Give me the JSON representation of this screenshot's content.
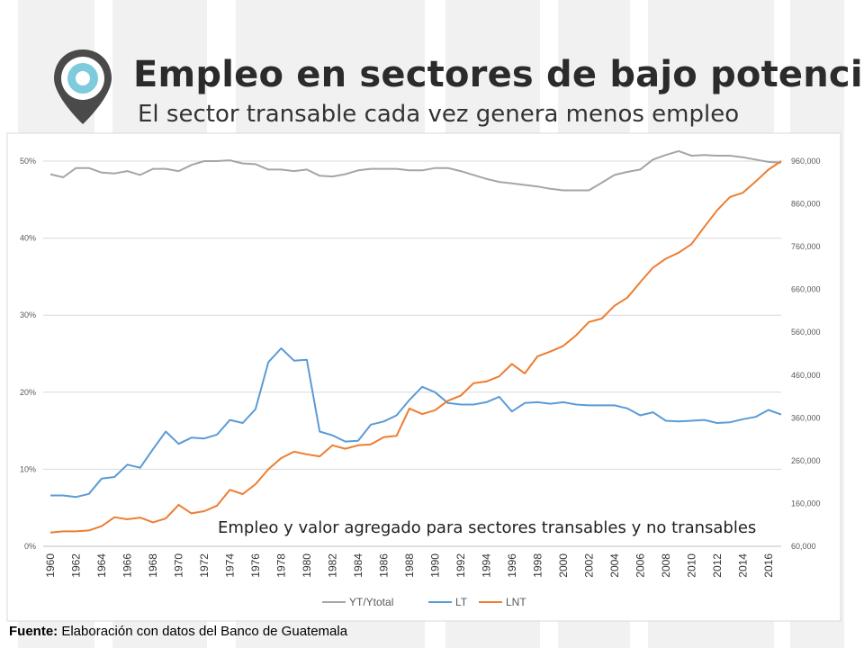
{
  "header": {
    "title": "Empleo en sectores de bajo potencial",
    "subtitle": "El sector transable cada vez genera menos empleo",
    "icon": "location-pin-icon"
  },
  "footer": {
    "label": "Fuente:",
    "text": "Elaboración con datos del Banco de Guatemala"
  },
  "colors": {
    "yt": "#a5a5a5",
    "lt": "#5b9bd5",
    "lnt": "#ed7d31",
    "pin_outer": "#4a4a4a",
    "pin_inner": "#7ecbdc"
  },
  "chart_data": {
    "type": "line",
    "annotation": "Empleo y valor agregado para sectores transables y no transables",
    "x": [
      1960,
      1961,
      1962,
      1963,
      1964,
      1965,
      1966,
      1967,
      1968,
      1969,
      1970,
      1971,
      1972,
      1973,
      1974,
      1975,
      1976,
      1977,
      1978,
      1979,
      1980,
      1981,
      1982,
      1983,
      1984,
      1985,
      1986,
      1987,
      1988,
      1989,
      1990,
      1991,
      1992,
      1993,
      1994,
      1995,
      1996,
      1997,
      1998,
      1999,
      2000,
      2001,
      2002,
      2003,
      2004,
      2005,
      2006,
      2007,
      2008,
      2009,
      2010,
      2011,
      2012,
      2013,
      2014,
      2015,
      2016,
      2017
    ],
    "x_tick_labels": [
      "1960",
      "1962",
      "1964",
      "1966",
      "1968",
      "1970",
      "1972",
      "1974",
      "1976",
      "1978",
      "1980",
      "1982",
      "1984",
      "1986",
      "1988",
      "1990",
      "1992",
      "1994",
      "1996",
      "1998",
      "2000",
      "2002",
      "2004",
      "2006",
      "2008",
      "2010",
      "2012",
      "2014",
      "2016"
    ],
    "y_left": {
      "ylim": [
        0,
        0.5
      ],
      "ticks": [
        0,
        0.1,
        0.2,
        0.3,
        0.4,
        0.5
      ],
      "tick_labels": [
        "0%",
        "10%",
        "20%",
        "30%",
        "40%",
        "50%"
      ]
    },
    "y_right": {
      "ylim": [
        60000,
        960000
      ],
      "ticks": [
        60000,
        160000,
        260000,
        360000,
        460000,
        560000,
        660000,
        760000,
        860000,
        960000
      ],
      "tick_labels": [
        "60,000",
        "160,000",
        "260,000",
        "360,000",
        "460,000",
        "560,000",
        "660,000",
        "760,000",
        "860,000",
        "960,000"
      ]
    },
    "grid": true,
    "legend_position": "bottom",
    "series": [
      {
        "name": "YT/Ytotal",
        "axis": "left",
        "color_key": "yt",
        "values": [
          0.483,
          0.479,
          0.491,
          0.491,
          0.485,
          0.484,
          0.487,
          0.482,
          0.49,
          0.49,
          0.487,
          0.495,
          0.5,
          0.5,
          0.501,
          0.497,
          0.496,
          0.489,
          0.489,
          0.487,
          0.489,
          0.481,
          0.48,
          0.483,
          0.488,
          0.49,
          0.49,
          0.49,
          0.488,
          0.488,
          0.491,
          0.491,
          0.487,
          0.482,
          0.477,
          0.473,
          0.471,
          0.469,
          0.467,
          0.464,
          0.462,
          0.462,
          0.462,
          0.472,
          0.482,
          0.486,
          0.489,
          0.502,
          0.508,
          0.513,
          0.507,
          0.508,
          0.507,
          0.507,
          0.505,
          0.502,
          0.499,
          0.498
        ]
      },
      {
        "name": "LT",
        "axis": "left",
        "color_key": "lt",
        "values": [
          0.066,
          0.066,
          0.064,
          0.068,
          0.088,
          0.09,
          0.106,
          0.102,
          0.126,
          0.149,
          0.133,
          0.141,
          0.14,
          0.145,
          0.164,
          0.16,
          0.178,
          0.239,
          0.257,
          0.241,
          0.242,
          0.149,
          0.144,
          0.136,
          0.137,
          0.158,
          0.162,
          0.17,
          0.19,
          0.207,
          0.2,
          0.186,
          0.184,
          0.184,
          0.187,
          0.194,
          0.175,
          0.186,
          0.187,
          0.185,
          0.187,
          0.184,
          0.183,
          0.183,
          0.183,
          0.179,
          0.17,
          0.174,
          0.163,
          0.162,
          0.163,
          0.164,
          0.16,
          0.161,
          0.165,
          0.168,
          0.177,
          0.171
        ]
      },
      {
        "name": "LNT",
        "axis": "right",
        "color_key": "lnt",
        "values": [
          92000,
          95000,
          95000,
          97000,
          107000,
          128000,
          123000,
          127000,
          116000,
          125000,
          157000,
          137000,
          142000,
          155000,
          192000,
          182000,
          205000,
          240000,
          266000,
          281000,
          275000,
          270000,
          296000,
          288000,
          296000,
          298000,
          315000,
          318000,
          382000,
          369000,
          378000,
          400000,
          412000,
          441000,
          445000,
          457000,
          486000,
          464000,
          504000,
          515000,
          528000,
          553000,
          584000,
          592000,
          622000,
          641000,
          677000,
          711000,
          732000,
          746000,
          766000,
          806000,
          845000,
          876000,
          886000,
          912000,
          940000,
          960000
        ]
      }
    ]
  }
}
